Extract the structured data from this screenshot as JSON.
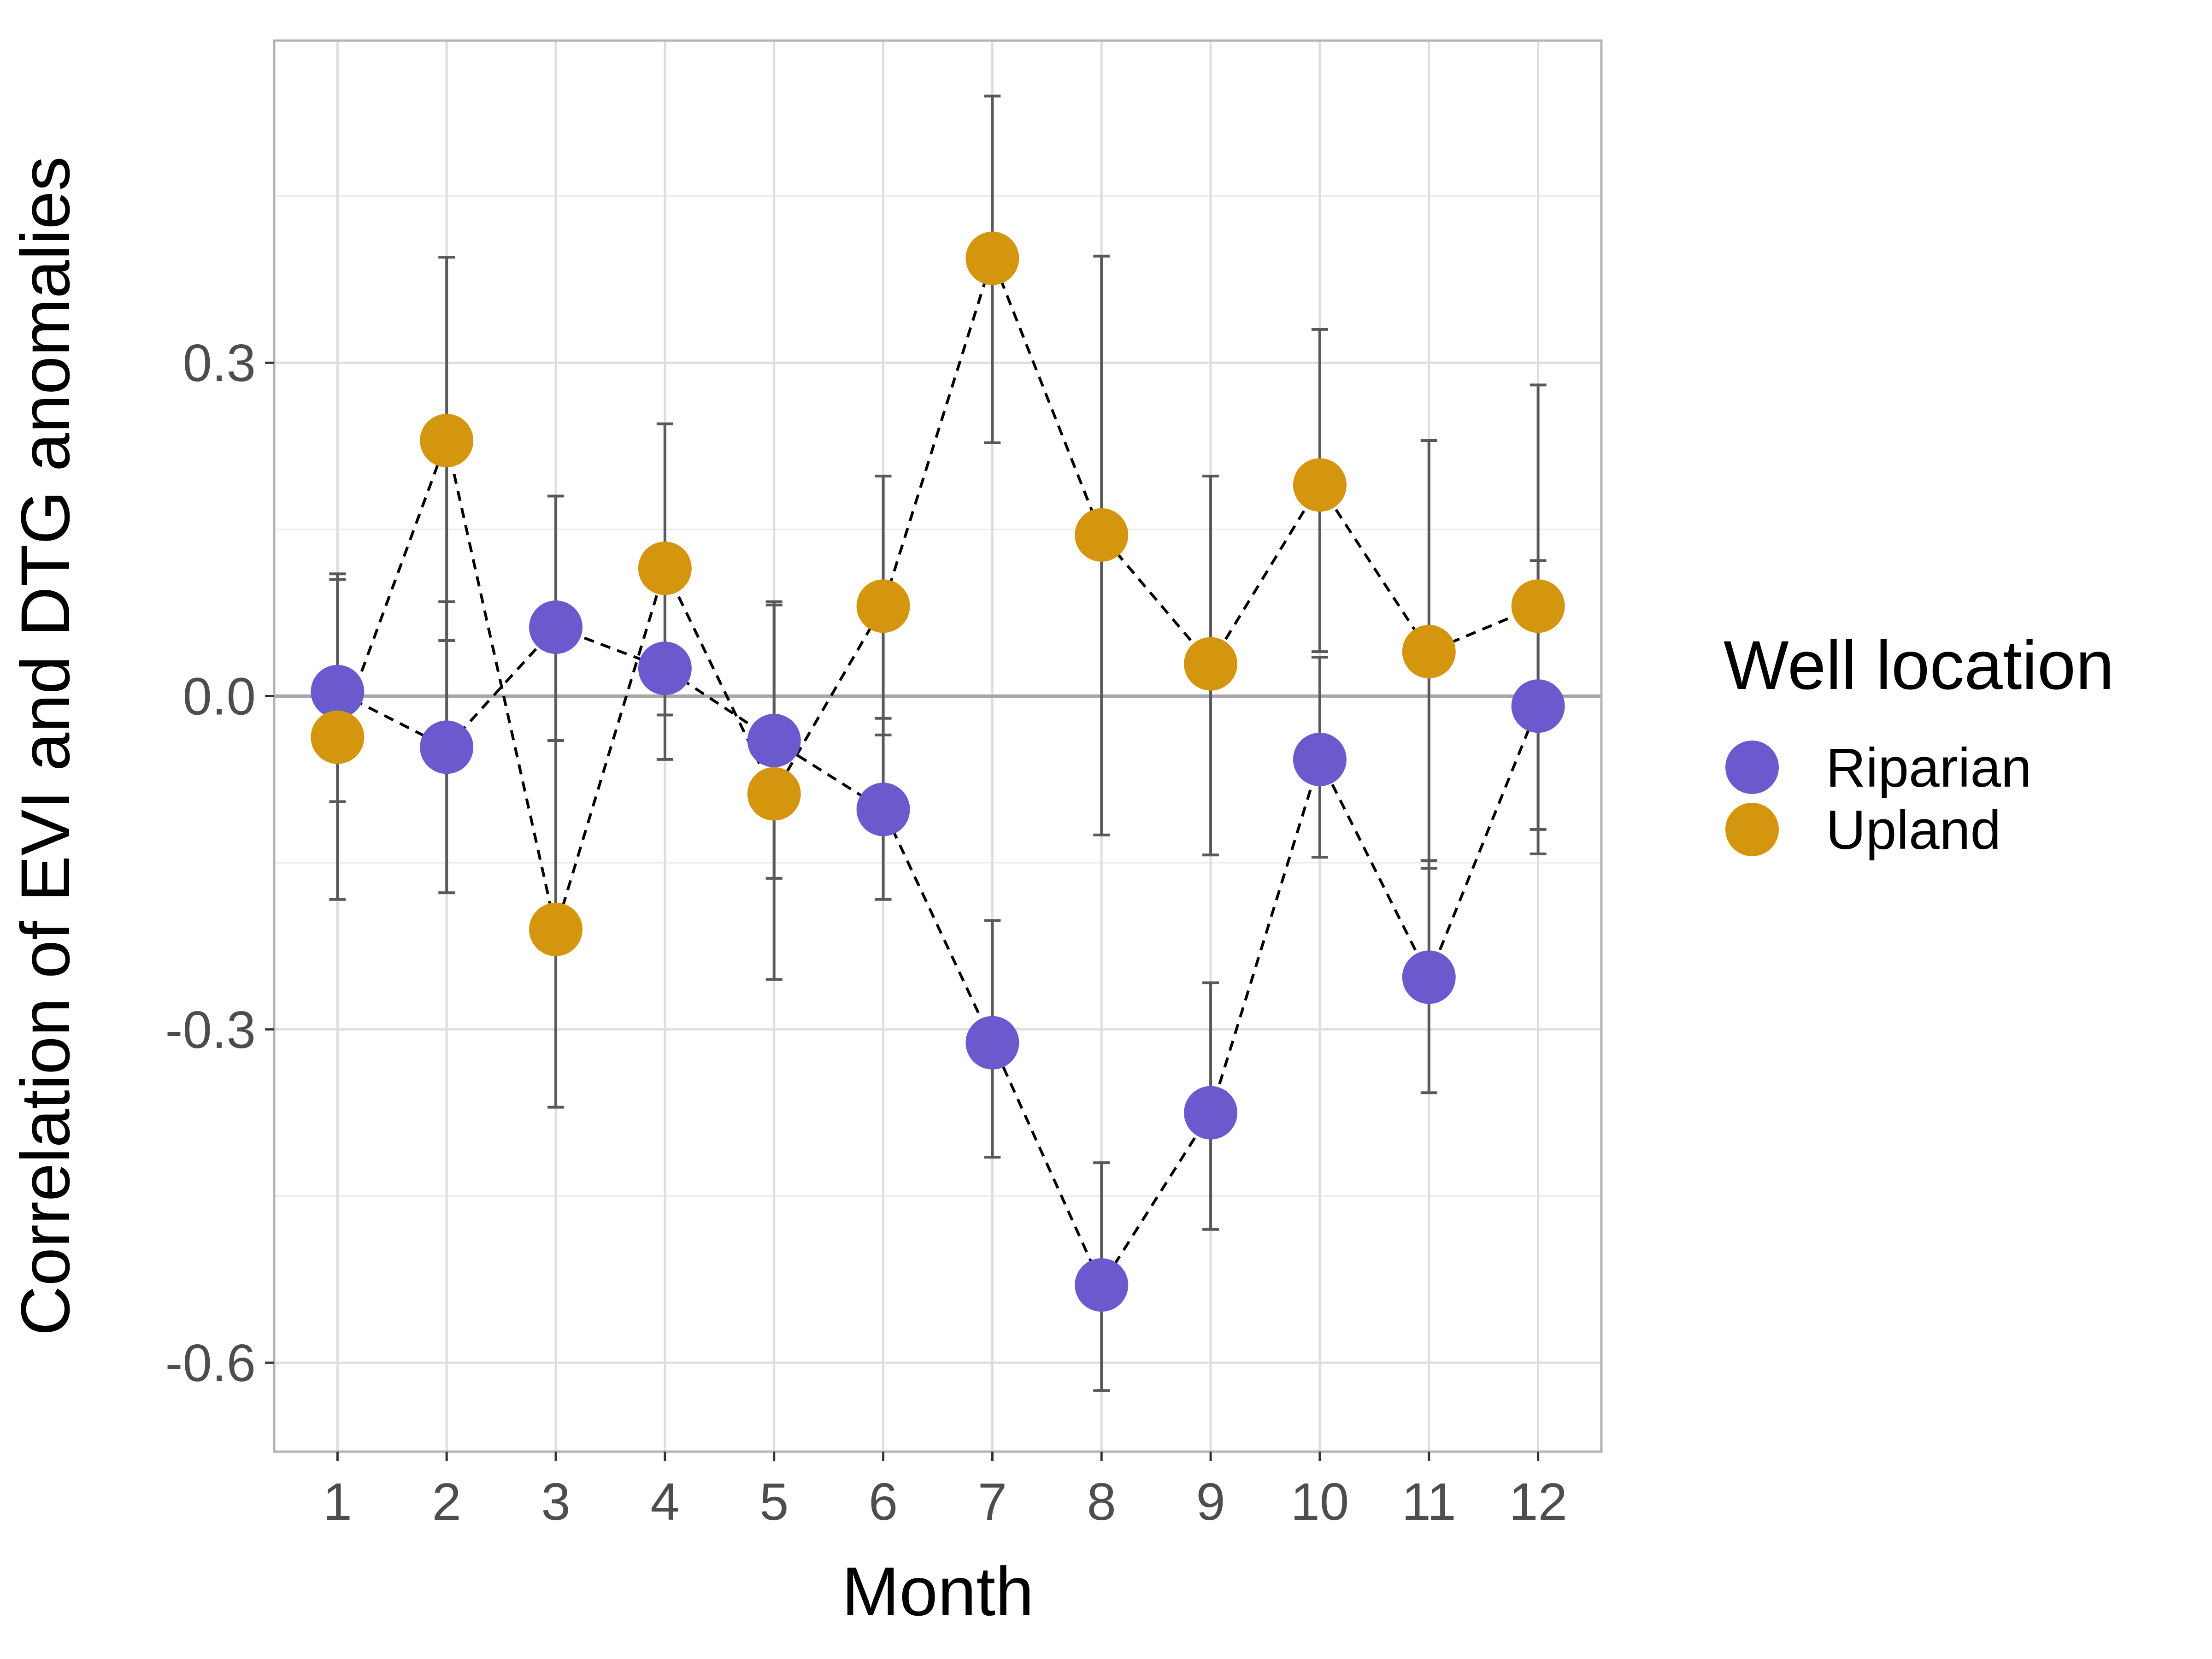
{
  "chart_data": {
    "type": "scatter",
    "xlabel": "Month",
    "ylabel": "Correlation of EVI and DTG anomalies",
    "categories": [
      "1",
      "2",
      "3",
      "4",
      "5",
      "6",
      "7",
      "8",
      "9",
      "10",
      "11",
      "12"
    ],
    "x": [
      1,
      2,
      3,
      4,
      5,
      6,
      7,
      8,
      9,
      10,
      11,
      12
    ],
    "xlim": [
      0.42,
      12.58
    ],
    "ylim": [
      -0.68,
      0.59
    ],
    "yticks": [
      -0.6,
      -0.3,
      0.0,
      0.3
    ],
    "ytick_labels": [
      "-0.6",
      "-0.3",
      "0.0",
      "0.3"
    ],
    "grid": true,
    "reference_line_y": 0,
    "connect_lines": "dashed",
    "legend": {
      "title": "Well location",
      "position": "right"
    },
    "series": [
      {
        "name": "Riparian",
        "color": "#6a5acd",
        "values": [
          0.004,
          -0.046,
          0.062,
          0.025,
          -0.04,
          -0.102,
          -0.312,
          -0.53,
          -0.375,
          -0.057,
          -0.253,
          -0.009
        ],
        "err_low": [
          -0.183,
          -0.177,
          -0.04,
          -0.057,
          -0.164,
          -0.183,
          -0.415,
          -0.625,
          -0.48,
          -0.145,
          -0.357,
          -0.12
        ],
        "err_high": [
          0.11,
          0.085,
          0.18,
          0.245,
          0.085,
          -0.02,
          -0.202,
          -0.42,
          -0.258,
          0.035,
          -0.148,
          0.122
        ]
      },
      {
        "name": "Upland",
        "color": "#d4960f",
        "values": [
          -0.037,
          0.23,
          -0.21,
          0.115,
          -0.088,
          0.081,
          0.394,
          0.145,
          0.029,
          0.19,
          0.04,
          0.081
        ],
        "err_low": [
          -0.095,
          0.05,
          -0.37,
          -0.017,
          -0.255,
          -0.035,
          0.228,
          -0.125,
          -0.143,
          0.04,
          -0.155,
          -0.142
        ],
        "err_high": [
          0.105,
          0.395,
          0.18,
          0.245,
          0.082,
          0.198,
          0.54,
          0.396,
          0.198,
          0.33,
          0.23,
          0.28
        ]
      }
    ]
  }
}
